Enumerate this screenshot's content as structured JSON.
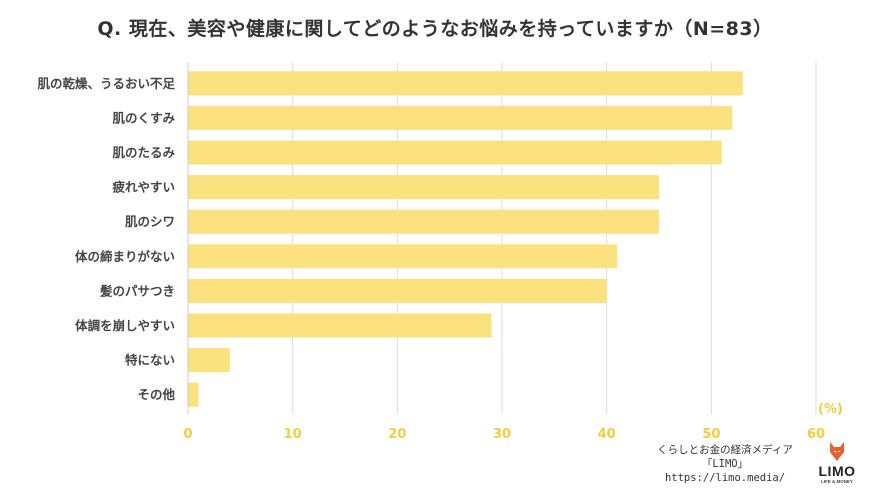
{
  "chart_data": {
    "type": "bar",
    "orientation": "horizontal",
    "title": "Q. 現在、美容や健康に関してどのようなお悩みを持っていますか（N=83）",
    "categories": [
      "肌の乾燥、うるおい不足",
      "肌のくすみ",
      "肌のたるみ",
      "疲れやすい",
      "肌のシワ",
      "体の締まりがない",
      "髪のパサつき",
      "体調を崩しやすい",
      "特にない",
      "その他"
    ],
    "values": [
      53,
      52,
      51,
      45,
      45,
      41,
      40,
      29,
      4,
      1
    ],
    "xlabel": "(%)",
    "xlim": [
      0,
      60
    ],
    "xticks": [
      0,
      10,
      20,
      30,
      40,
      50,
      60
    ],
    "grid": true,
    "bar_color": "#fbe27f",
    "axis_color": "#f2cd3c"
  },
  "brand": {
    "tagline": "くらしとお金の経済メディア",
    "name": "「LIMO」",
    "url": "https://limo.media/"
  },
  "logo": {
    "text": "LIMO",
    "sub": "LIFE & MONEY",
    "color": "#e8602c"
  }
}
